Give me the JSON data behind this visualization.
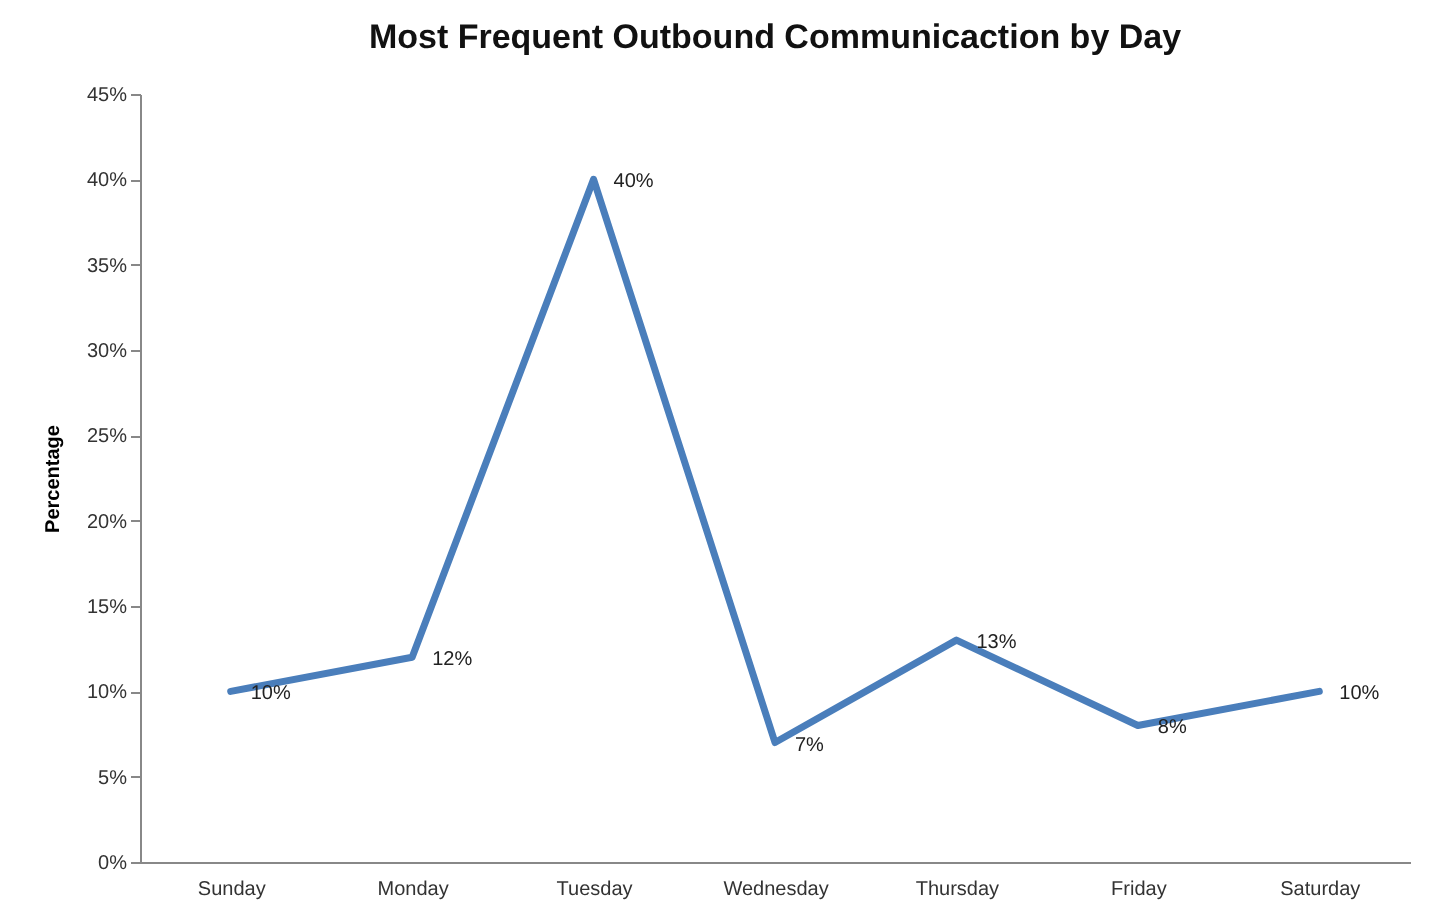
{
  "chart_data": {
    "type": "line",
    "title": "Most Frequent Outbound Communicaction by Day",
    "ylabel": "Percentage",
    "categories": [
      "Sunday",
      "Monday",
      "Tuesday",
      "Wednesday",
      "Thursday",
      "Friday",
      "Saturday"
    ],
    "series": [
      {
        "color": "#4a7ebb",
        "values": [
          10,
          12,
          40,
          7,
          13,
          8,
          10
        ],
        "value_labels": [
          "10%",
          "12%",
          "40%",
          "7%",
          "13%",
          "8%",
          "10%"
        ]
      }
    ],
    "ylim": [
      0,
      45
    ],
    "yticks": [
      {
        "value": 0,
        "label": "0%"
      },
      {
        "value": 5,
        "label": "5%"
      },
      {
        "value": 10,
        "label": "10%"
      },
      {
        "value": 15,
        "label": "15%"
      },
      {
        "value": 20,
        "label": "20%"
      },
      {
        "value": 25,
        "label": "25%"
      },
      {
        "value": 30,
        "label": "30%"
      },
      {
        "value": 35,
        "label": "35%"
      },
      {
        "value": 40,
        "label": "40%"
      },
      {
        "value": 45,
        "label": "45%"
      }
    ],
    "grid": false,
    "legend": false,
    "marker": "none",
    "line_style": "solid"
  }
}
